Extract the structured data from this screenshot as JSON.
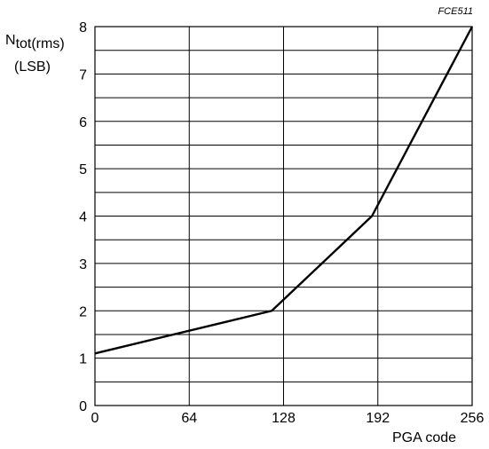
{
  "figure_code": "FCE511",
  "ylabel": {
    "main": "N",
    "subscript": "tot(rms)",
    "unit": "(LSB)"
  },
  "xlabel": "PGA code",
  "chart_data": {
    "type": "line",
    "xlabel": "PGA code",
    "ylabel": "Ntot(rms) (LSB)",
    "xlim": [
      0,
      256
    ],
    "ylim": [
      0,
      8
    ],
    "x_ticks": [
      0,
      64,
      128,
      192,
      256
    ],
    "y_ticks": [
      0,
      1,
      2,
      3,
      4,
      5,
      6,
      7,
      8
    ],
    "y_minor_step": 0.5,
    "grid": true,
    "series": [
      {
        "x": [
          0,
          120,
          188,
          256
        ],
        "y": [
          1.1,
          2.0,
          4.0,
          8.0
        ]
      }
    ]
  }
}
